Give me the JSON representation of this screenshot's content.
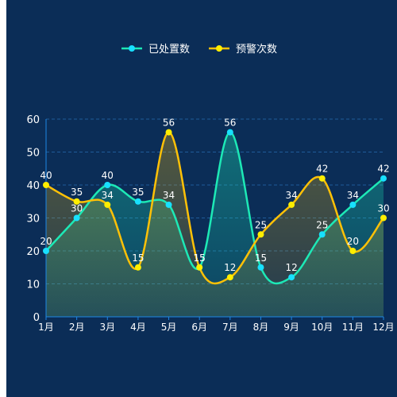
{
  "chart_data": {
    "type": "line",
    "smooth": true,
    "categories": [
      "1月",
      "2月",
      "3月",
      "4月",
      "5月",
      "6月",
      "7月",
      "8月",
      "9月",
      "10月",
      "11月",
      "12月"
    ],
    "series": [
      {
        "name": "已处置数",
        "values": [
          20,
          30,
          40,
          35,
          34,
          15,
          56,
          15,
          12,
          25,
          34,
          42
        ],
        "line_color": "#1de9b6",
        "marker_color": "#18e0ff",
        "area": true
      },
      {
        "name": "预警次数",
        "values": [
          40,
          35,
          34,
          15,
          56,
          15,
          12,
          25,
          34,
          42,
          20,
          30
        ],
        "line_color": "#ffc107",
        "marker_color": "#ffee00",
        "area": true
      }
    ],
    "ylim": [
      0,
      60
    ],
    "yticks": [
      0,
      10,
      20,
      30,
      40,
      50,
      60
    ],
    "grid": true,
    "legend_position": "top-center",
    "data_labels": true
  },
  "colors": {
    "background": "#0b2d57",
    "axis": "#1e88e5",
    "grid": "#1f5b9a"
  }
}
